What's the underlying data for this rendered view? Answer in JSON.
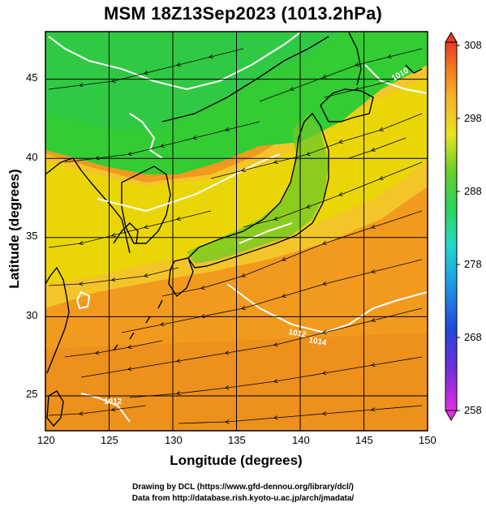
{
  "title": "MSM 18Z13Sep2023 (1013.2hPa)",
  "x_axis": {
    "label": "Longitude (degrees)",
    "ticks": [
      120,
      125,
      130,
      135,
      140,
      145,
      150
    ],
    "range": [
      120,
      150
    ]
  },
  "y_axis": {
    "label": "Latitude  (degrees)",
    "ticks": [
      25,
      30,
      35,
      40,
      45
    ],
    "range": [
      22.4,
      47.6
    ]
  },
  "colorbar": {
    "ticks": [
      258,
      268,
      278,
      288,
      298,
      308
    ],
    "range": [
      258,
      308
    ]
  },
  "contour_labels": [
    "1010",
    "1012",
    "1014",
    "1012"
  ],
  "credits": {
    "line1": "Drawing by DCL (https://www.gfd-dennou.org/library/dcl/)",
    "line2": "Data from http://database.rish.kyoto-u.ac.jp/arch/jmadata/"
  },
  "colors": {
    "green": "#33cc33",
    "yellow": "#e8d800",
    "orange": "#f29a1e",
    "contour": "#ffffff",
    "coast": "#000000"
  }
}
